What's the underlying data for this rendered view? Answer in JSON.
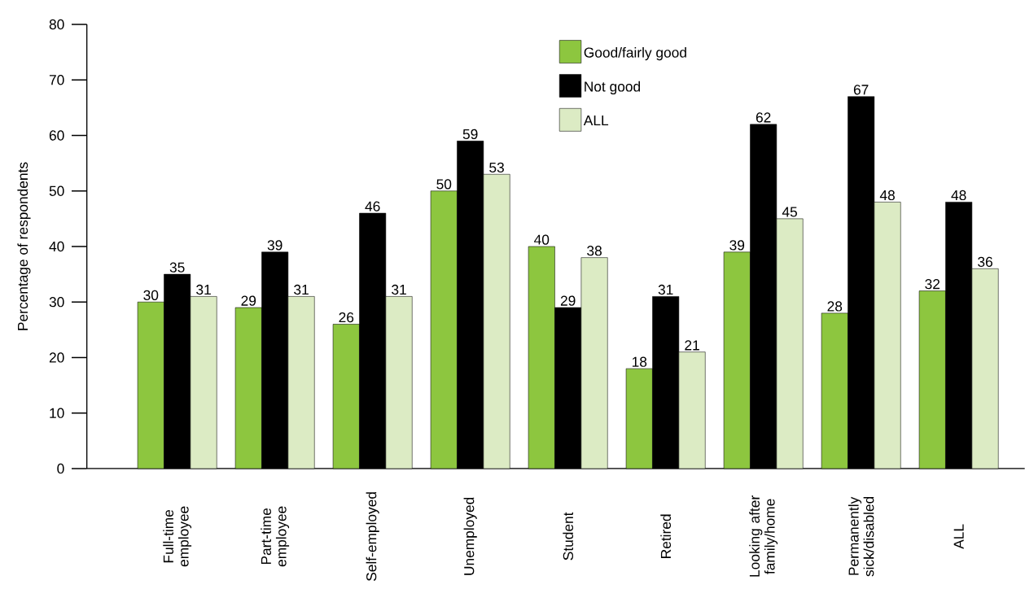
{
  "chart_data": {
    "type": "bar",
    "ylabel": "Percentage of respondents",
    "categories": [
      "Full-time employee",
      "Part-time employee",
      "Self-employed",
      "Unemployed",
      "Student",
      "Retired",
      "Looking after family/home",
      "Permanently sick/disabled",
      "ALL"
    ],
    "series": [
      {
        "name": "Good/fairly good",
        "color": "#8dc63f",
        "values": [
          30,
          29,
          26,
          50,
          40,
          18,
          39,
          28,
          32
        ]
      },
      {
        "name": "Not good",
        "color": "#000000",
        "values": [
          35,
          39,
          46,
          59,
          29,
          31,
          62,
          67,
          48
        ]
      },
      {
        "name": "ALL",
        "color": "#dcebc4",
        "values": [
          31,
          31,
          31,
          53,
          38,
          21,
          45,
          48,
          36
        ]
      }
    ],
    "ylim": [
      0,
      80
    ],
    "yticks": [
      0,
      10,
      20,
      30,
      40,
      50,
      60,
      70,
      80
    ],
    "data_labels": true,
    "legend": "top",
    "grid": false
  }
}
